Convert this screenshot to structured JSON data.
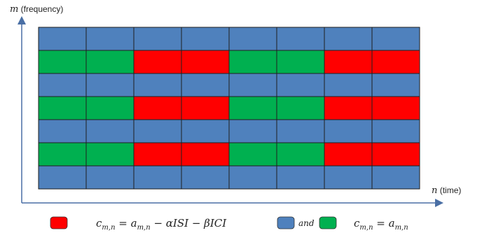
{
  "axes": {
    "y_var": "m",
    "y_label": " (frequency)",
    "x_var": "n",
    "x_label": " (time)"
  },
  "grid": {
    "rows": [
      [
        "B",
        "B",
        "B",
        "B",
        "B",
        "B",
        "B",
        "B"
      ],
      [
        "G",
        "G",
        "R",
        "R",
        "G",
        "G",
        "R",
        "R"
      ],
      [
        "B",
        "B",
        "B",
        "B",
        "B",
        "B",
        "B",
        "B"
      ],
      [
        "G",
        "G",
        "R",
        "R",
        "G",
        "G",
        "R",
        "R"
      ],
      [
        "B",
        "B",
        "B",
        "B",
        "B",
        "B",
        "B",
        "B"
      ],
      [
        "G",
        "G",
        "R",
        "R",
        "G",
        "G",
        "R",
        "R"
      ],
      [
        "B",
        "B",
        "B",
        "B",
        "B",
        "B",
        "B",
        "B"
      ]
    ],
    "colors": {
      "B": "#4f81bd",
      "G": "#00b050",
      "R": "#ff0000"
    },
    "border_color": "#1f1f1f",
    "axis_color": "#4a6fa5"
  },
  "legend": {
    "red_equation": "c_{m,n} = a_{m,n} − αISI − βICI",
    "connector": "and",
    "blue_green_equation": "c_{m,n} = a_{m,n}"
  }
}
